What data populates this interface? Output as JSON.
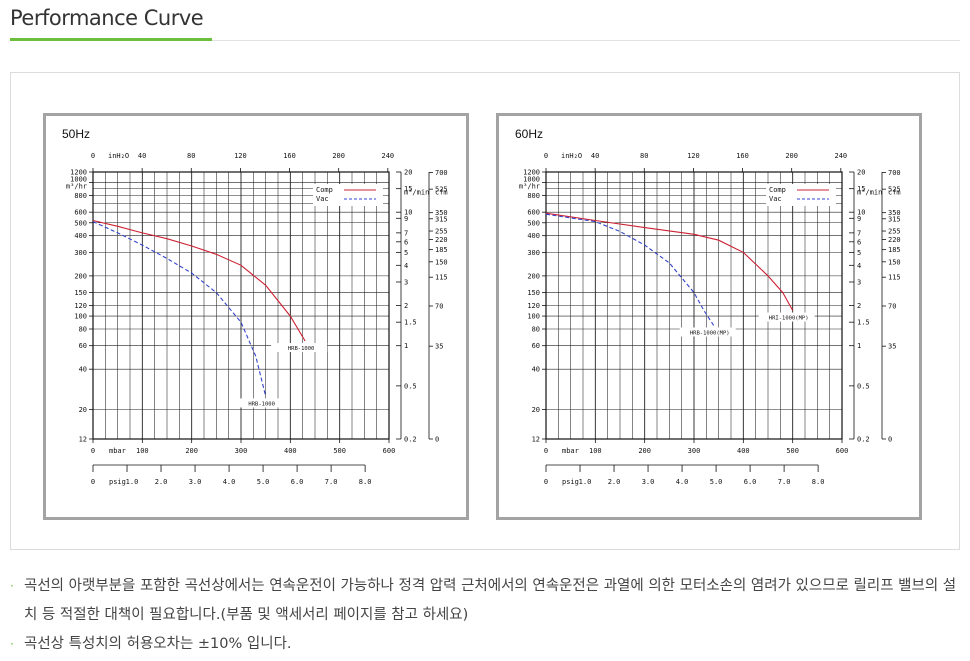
{
  "page": {
    "title": "Performance Curve"
  },
  "charts_ui": [
    {
      "freq": "50Hz"
    },
    {
      "freq": "60Hz"
    }
  ],
  "notes": [
    "곡선의 아랫부분을 포함한 곡선상에서는 연속운전이 가능하나 정격 압력 근처에서의 연속운전은 과열에 의한 모터소손의 염려가 있으므로 릴리프 밸브의 설치 등 적절한 대책이 필요합니다.(부품 및 액세서리 페이지를 참고 하세요)",
    "곡선상 특성치의 허용오차는 ±10% 입니다."
  ],
  "colors": {
    "accent": "#6cbf3c",
    "comp": "#cc2233",
    "vac": "#3344cc",
    "frame": "#a3a3a3"
  },
  "chart_data": [
    {
      "type": "line",
      "title": "50Hz",
      "legend": [
        "Comp",
        "Vac"
      ],
      "legend_placement": "top-right",
      "grid": true,
      "top_axis": {
        "label": "inH₂O",
        "ticks": [
          "0",
          "40",
          "80",
          "120",
          "160",
          "200",
          "240"
        ],
        "values": [
          0,
          40,
          80,
          120,
          160,
          200,
          240
        ]
      },
      "bottom_axis_1": {
        "label": "mbar",
        "ticks": [
          "0",
          "100",
          "200",
          "300",
          "400",
          "500",
          "600"
        ],
        "values": [
          0,
          100,
          200,
          300,
          400,
          500,
          600
        ],
        "range": [
          0,
          600
        ]
      },
      "bottom_axis_2": {
        "label": "psig",
        "ticks": [
          "0",
          "1.0",
          "2.0",
          "3.0",
          "4.0",
          "5.0",
          "6.0",
          "7.0",
          "8.0"
        ],
        "values": [
          0,
          1,
          2,
          3,
          4,
          5,
          6,
          7,
          8
        ]
      },
      "left_axis": {
        "label": "m³/hr",
        "ticks": [
          "1200",
          "1000",
          "800",
          "600",
          "500",
          "400",
          "300",
          "200",
          "150",
          "120",
          "100",
          "80",
          "60",
          "40",
          "20",
          "12"
        ],
        "values": [
          1200,
          1000,
          800,
          600,
          500,
          400,
          300,
          200,
          150,
          120,
          100,
          80,
          60,
          40,
          20,
          12
        ],
        "header_label": "1000"
      },
      "right_axis_1": {
        "label": "m³/min",
        "ticks": [
          "20",
          "15",
          "10",
          "9",
          "7",
          "6",
          "5",
          "4",
          "3",
          "2",
          "1.5",
          "1",
          "0.5",
          "0.2"
        ],
        "values": [
          20,
          15,
          10,
          9,
          7,
          6,
          5,
          4,
          3,
          2,
          1.5,
          1,
          0.5,
          0.2
        ]
      },
      "right_axis_2": {
        "label": "cfm",
        "ticks": [
          "700",
          "525",
          "350",
          "315",
          "255",
          "220",
          "185",
          "150",
          "115",
          "70",
          "35",
          "0"
        ],
        "values": [
          700,
          525,
          350,
          315,
          255,
          220,
          185,
          150,
          115,
          70,
          35,
          0
        ]
      },
      "series": [
        {
          "name": "Comp",
          "style": "solid",
          "end_label": "HRB-1000",
          "x": [
            0,
            50,
            100,
            150,
            200,
            250,
            300,
            350,
            400,
            430
          ],
          "y": [
            520,
            470,
            420,
            380,
            335,
            290,
            240,
            170,
            100,
            65
          ]
        },
        {
          "name": "Vac",
          "style": "dashed",
          "end_label": "HRB-1000",
          "x": [
            0,
            50,
            100,
            150,
            200,
            250,
            300,
            330,
            350
          ],
          "y": [
            510,
            420,
            340,
            270,
            210,
            150,
            90,
            50,
            25
          ]
        }
      ]
    },
    {
      "type": "line",
      "title": "60Hz",
      "legend": [
        "Comp",
        "Vac"
      ],
      "legend_placement": "top-right",
      "grid": true,
      "top_axis": {
        "label": "inH₂O",
        "ticks": [
          "0",
          "40",
          "80",
          "120",
          "160",
          "200",
          "240"
        ],
        "values": [
          0,
          40,
          80,
          120,
          160,
          200,
          240
        ]
      },
      "bottom_axis_1": {
        "label": "mbar",
        "ticks": [
          "0",
          "100",
          "200",
          "300",
          "400",
          "500",
          "600"
        ],
        "values": [
          0,
          100,
          200,
          300,
          400,
          500,
          600
        ],
        "range": [
          0,
          600
        ]
      },
      "bottom_axis_2": {
        "label": "psig",
        "ticks": [
          "0",
          "1.0",
          "2.0",
          "3.0",
          "4.0",
          "5.0",
          "6.0",
          "7.0",
          "8.0"
        ],
        "values": [
          0,
          1,
          2,
          3,
          4,
          5,
          6,
          7,
          8
        ]
      },
      "left_axis": {
        "label": "m³/hr",
        "ticks": [
          "1200",
          "1000",
          "800",
          "600",
          "500",
          "400",
          "300",
          "200",
          "150",
          "120",
          "100",
          "80",
          "60",
          "40",
          "20",
          "12"
        ],
        "values": [
          1200,
          1000,
          800,
          600,
          500,
          400,
          300,
          200,
          150,
          120,
          100,
          80,
          60,
          40,
          20,
          12
        ],
        "header_label": "1000"
      },
      "right_axis_1": {
        "label": "m³/min",
        "ticks": [
          "20",
          "15",
          "10",
          "9",
          "7",
          "6",
          "5",
          "4",
          "3",
          "2",
          "1.5",
          "1",
          "0.5",
          "0.2"
        ],
        "values": [
          20,
          15,
          10,
          9,
          7,
          6,
          5,
          4,
          3,
          2,
          1.5,
          1,
          0.5,
          0.2
        ]
      },
      "right_axis_2": {
        "label": "cfm",
        "ticks": [
          "700",
          "525",
          "350",
          "315",
          "255",
          "220",
          "185",
          "150",
          "115",
          "70",
          "35",
          "0"
        ],
        "values": [
          700,
          525,
          350,
          315,
          255,
          220,
          185,
          150,
          115,
          70,
          35,
          0
        ]
      },
      "series": [
        {
          "name": "Comp",
          "style": "solid",
          "end_label": "HRI-1000(MP)",
          "x": [
            0,
            100,
            200,
            300,
            350,
            400,
            450,
            480,
            500
          ],
          "y": [
            590,
            520,
            460,
            410,
            370,
            300,
            200,
            150,
            110
          ]
        },
        {
          "name": "Vac",
          "style": "dashed",
          "end_label": "HRB-1000(MP)",
          "x": [
            0,
            100,
            150,
            200,
            250,
            300,
            320,
            340
          ],
          "y": [
            580,
            510,
            430,
            340,
            250,
            150,
            110,
            85
          ]
        }
      ]
    }
  ]
}
